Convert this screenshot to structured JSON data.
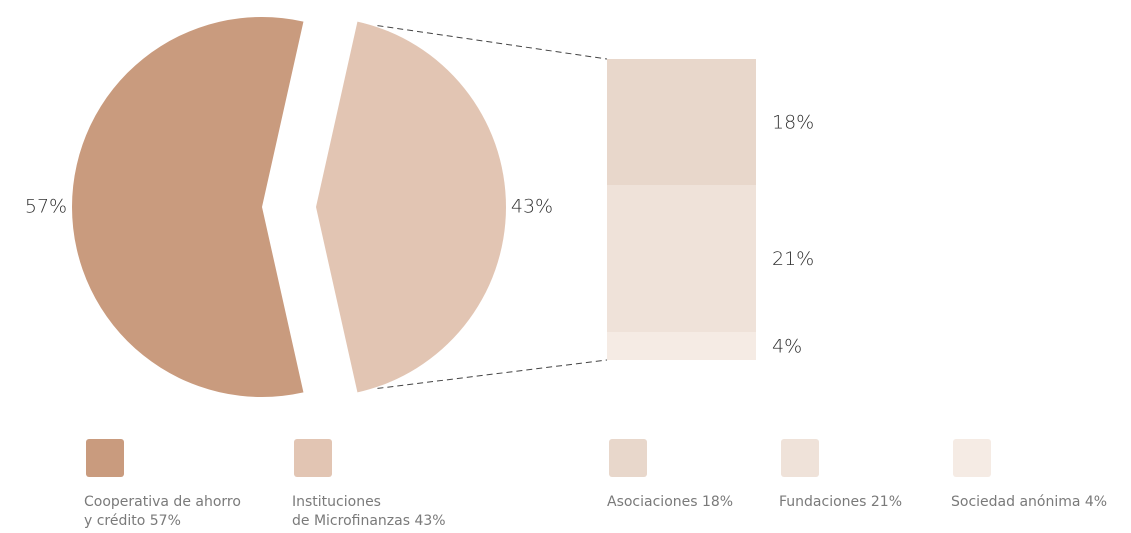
{
  "chart_data": {
    "type": "pie",
    "categories": [
      "Cooperativa de ahorro\ny crédito 57%",
      "Instituciones\nde Microfinanzas 43%"
    ],
    "values": [
      57,
      43
    ],
    "value_labels": [
      "57%",
      "43%"
    ],
    "colors": [
      "#c99b7e",
      "#e2c5b3"
    ],
    "breakdown": {
      "type": "bar",
      "categories": [
        "Asociaciones 18%",
        "Fundaciones 21%",
        "Sociedad anónima 4%"
      ],
      "values": [
        18,
        21,
        4
      ],
      "value_labels": [
        "18%",
        "21%",
        "4%"
      ],
      "colors": [
        "#e8d7cb",
        "#efe2d9",
        "#f5ebe4"
      ]
    }
  }
}
